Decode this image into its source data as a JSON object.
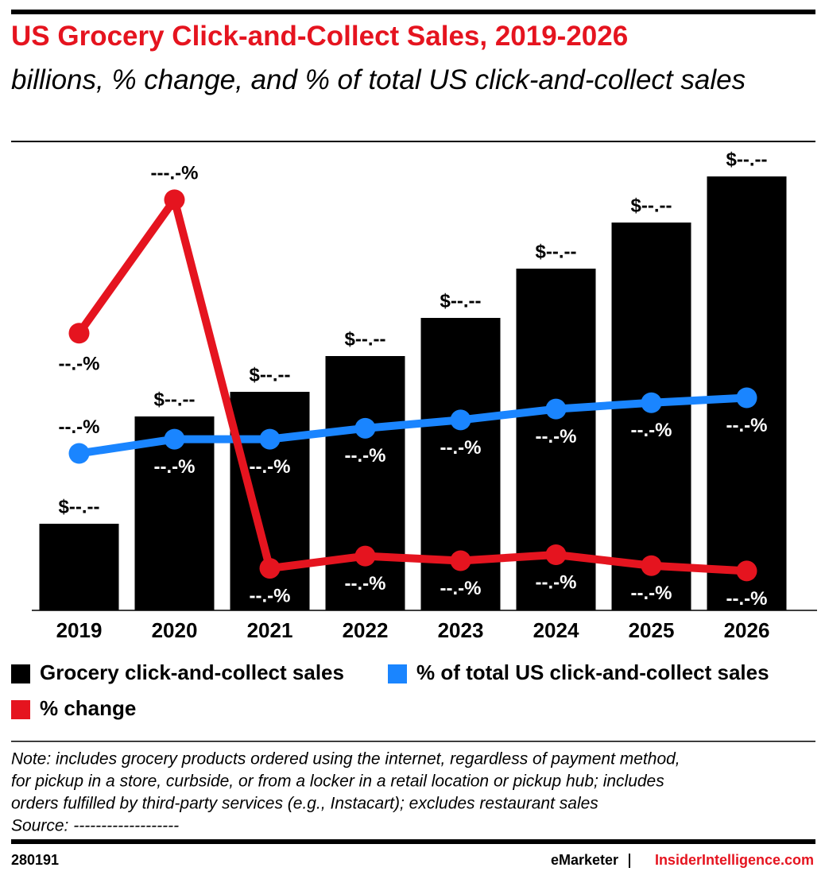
{
  "chart_data": {
    "type": "bar",
    "title": "US Grocery Click-and-Collect Sales, 2019-2026",
    "subtitle": "billions, % change, and % of total US click-and-collect sales",
    "categories": [
      "2019",
      "2020",
      "2021",
      "2022",
      "2023",
      "2024",
      "2025",
      "2026"
    ],
    "ylim": [
      0,
      120
    ],
    "y2lim": [
      0,
      144
    ],
    "series": [
      {
        "name": "Grocery click-and-collect sales",
        "type": "bar",
        "color": "#000000",
        "values": [
          21.8,
          48.8,
          55.0,
          64.0,
          73.6,
          86.0,
          97.6,
          109.2
        ],
        "value_labels": [
          "$--.--",
          "$--.--",
          "$--.--",
          "$--.--",
          "$--.--",
          "$--.--",
          "$--.--",
          "$--.--"
        ]
      },
      {
        "name": "% of total US click-and-collect sales",
        "type": "line",
        "axis": "y2",
        "color": "#1a85ff",
        "values": [
          47.4,
          51.7,
          51.7,
          55.0,
          57.5,
          60.8,
          62.7,
          64.2
        ],
        "value_labels": [
          "--.-%",
          "--.-%",
          "--.-%",
          "--.-%",
          "--.-%",
          "--.-%",
          "--.-%",
          "--.-%"
        ]
      },
      {
        "name": "% change",
        "type": "line",
        "axis": "y2",
        "color": "#e5141f",
        "values": [
          83.7,
          124.0,
          12.7,
          16.4,
          15.0,
          16.8,
          13.5,
          11.9
        ],
        "value_labels": [
          "--.-%",
          "---.-%",
          "--.-%",
          "--.-%",
          "--.-%",
          "--.-%",
          "--.-%",
          "--.-%"
        ]
      }
    ],
    "note": [
      "Note: includes grocery products ordered using the internet, regardless of payment method,",
      "for pickup in a store, curbside, or from a locker in a retail location or pickup hub; includes",
      "orders fulfilled by third-party services (e.g., Instacart); excludes restaurant sales",
      "Source: -------------------"
    ],
    "chart_id": "280191",
    "brand": "eMarketer",
    "site": "InsiderIntelligence.com"
  }
}
